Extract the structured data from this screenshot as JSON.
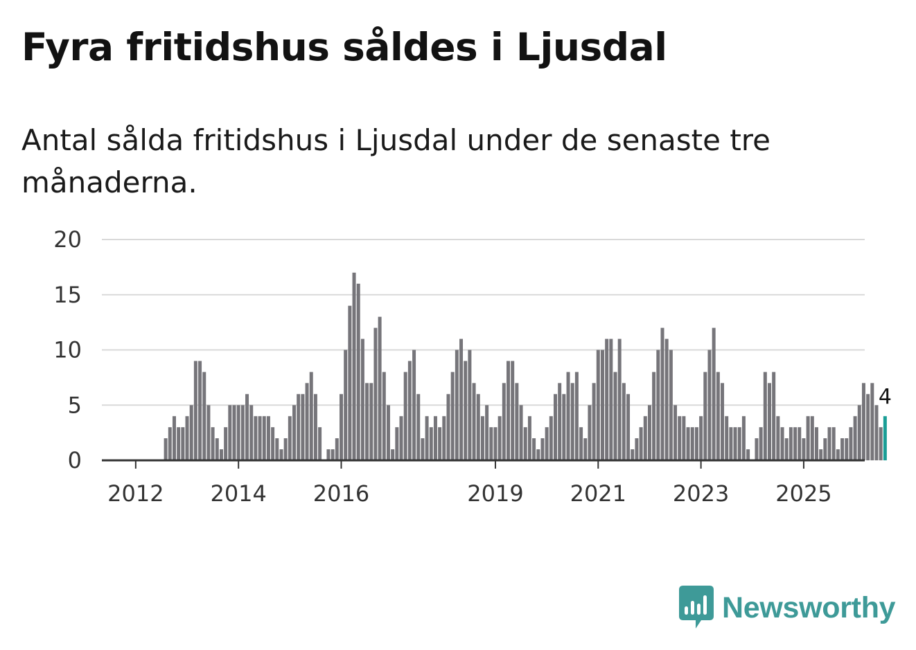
{
  "title": "Fyra fritidshus såldes i Ljusdal",
  "subtitle": "Antal sålda fritidshus i Ljusdal under de senaste tre månaderna.",
  "brand": {
    "name": "Newsworthy",
    "icon": "newsworthy-logo-icon",
    "color": "#3e9a98"
  },
  "colors": {
    "bar": "#76757a",
    "highlight": "#1a9e96",
    "grid": "#d9d9d9",
    "axis": "#333333"
  },
  "chart_data": {
    "type": "bar",
    "title": "Fyra fritidshus såldes i Ljusdal",
    "xlabel": "",
    "ylabel": "",
    "ylim": [
      0,
      20
    ],
    "yticks": [
      0,
      5,
      10,
      15,
      20
    ],
    "xticks": [
      "2012",
      "2014",
      "2016",
      "2019",
      "2021",
      "2023",
      "2025"
    ],
    "start_month": "2011-11",
    "values": [
      0,
      0,
      0,
      0,
      0,
      0,
      0,
      0,
      0,
      2,
      3,
      4,
      3,
      3,
      4,
      5,
      9,
      9,
      8,
      5,
      3,
      2,
      1,
      3,
      5,
      5,
      5,
      5,
      6,
      5,
      4,
      4,
      4,
      4,
      3,
      2,
      1,
      2,
      4,
      5,
      6,
      6,
      7,
      8,
      6,
      3,
      0,
      1,
      1,
      2,
      6,
      10,
      14,
      17,
      16,
      11,
      7,
      7,
      12,
      13,
      8,
      5,
      1,
      3,
      4,
      8,
      9,
      10,
      6,
      2,
      4,
      3,
      4,
      3,
      4,
      6,
      8,
      10,
      11,
      9,
      10,
      7,
      6,
      4,
      5,
      3,
      3,
      4,
      7,
      9,
      9,
      7,
      5,
      3,
      4,
      2,
      1,
      2,
      3,
      4,
      6,
      7,
      6,
      8,
      7,
      8,
      3,
      2,
      5,
      7,
      10,
      10,
      11,
      11,
      8,
      11,
      7,
      6,
      1,
      2,
      3,
      4,
      5,
      8,
      10,
      12,
      11,
      10,
      5,
      4,
      4,
      3,
      3,
      3,
      4,
      8,
      10,
      12,
      8,
      7,
      4,
      3,
      3,
      3,
      4,
      1,
      0,
      2,
      3,
      8,
      7,
      8,
      4,
      3,
      2,
      3,
      3,
      3,
      2,
      4,
      4,
      3,
      1,
      2,
      3,
      3,
      1,
      2,
      2,
      3,
      4,
      5,
      7,
      6,
      7,
      5,
      3,
      4
    ],
    "highlight_label": "4"
  }
}
